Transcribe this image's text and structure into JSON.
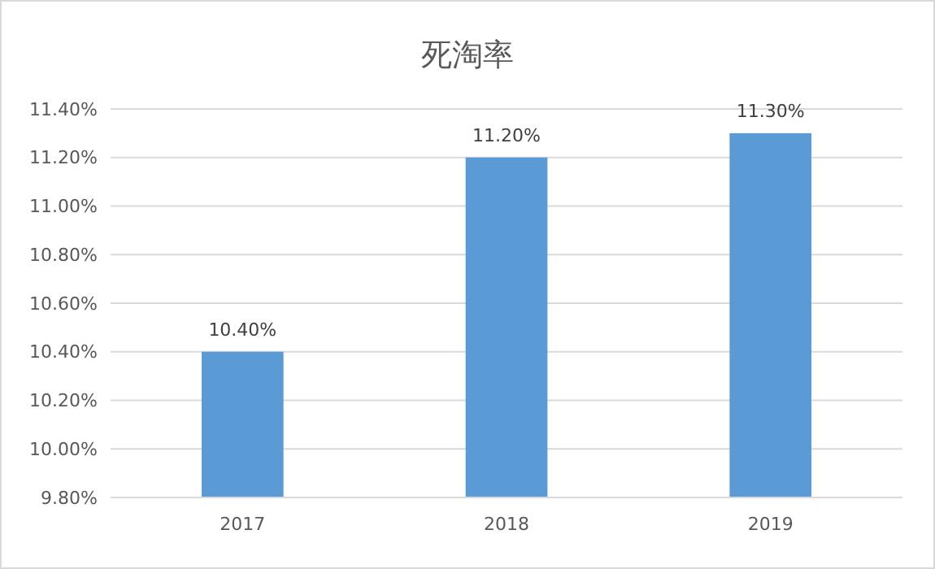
{
  "chart_data": {
    "type": "bar",
    "title": "死淘率",
    "categories": [
      "2017",
      "2018",
      "2019"
    ],
    "values": [
      10.4,
      11.2,
      11.3
    ],
    "color": "#5b9bd5",
    "value_labels": [
      "10.40%",
      "11.20%",
      "11.30%"
    ],
    "ylim": [
      9.8,
      11.4
    ],
    "yticks": [
      {
        "value": 9.8,
        "label": "9.80%"
      },
      {
        "value": 10,
        "label": "10.00%"
      },
      {
        "value": 10.2,
        "label": "10.20%"
      },
      {
        "value": 10.4,
        "label": "10.40%"
      },
      {
        "value": 10.6,
        "label": "10.60%"
      },
      {
        "value": 10.8,
        "label": "10.80%"
      },
      {
        "value": 11,
        "label": "11.00%"
      },
      {
        "value": 11.2,
        "label": "11.20%"
      },
      {
        "value": 11.4,
        "label": "11.40%"
      }
    ],
    "grid": "y"
  }
}
